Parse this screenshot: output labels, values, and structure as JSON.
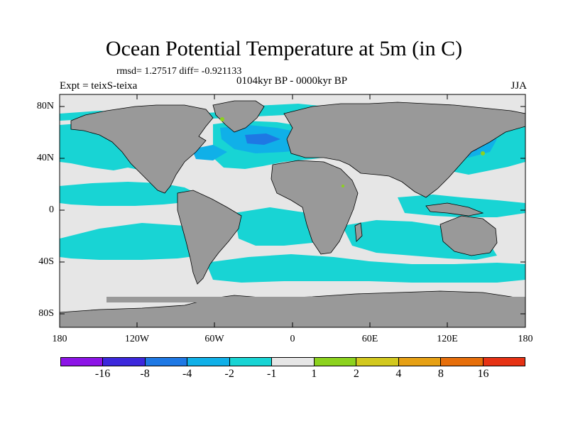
{
  "header": {
    "title": "Ocean Potential Temperature at 5m (in C)",
    "stats": "rmsd= 1.27517 diff= -0.921133",
    "period": "0104kyr BP - 0000kyr BP",
    "experiment": "Expt = teixS-teixa",
    "season": "JJA"
  },
  "map": {
    "projection": "cylindrical equidistant",
    "lon_range": [
      -180,
      180
    ],
    "lat_range": [
      -90,
      90
    ],
    "lat_ticks": [
      "80N",
      "40N",
      "0",
      "40S",
      "80S"
    ],
    "lon_ticks": [
      "180",
      "120W",
      "60W",
      "0",
      "60E",
      "120E",
      "180"
    ],
    "colors": {
      "land": "#999999",
      "background_ocean": "#e6e6e6",
      "cold_anomaly_light": "#18d4d4",
      "cold_anomaly_medium": "#10b0e8",
      "cold_anomaly_strong": "#1e78e4"
    }
  },
  "colorbar": {
    "labels": [
      "-16",
      "-8",
      "-4",
      "-2",
      "-1",
      "1",
      "2",
      "4",
      "8",
      "16"
    ],
    "colors": [
      "#8c14e6",
      "#3c28dc",
      "#1e78e4",
      "#10b0e8",
      "#18d4d4",
      "#e6e6e6",
      "#8cd21e",
      "#d2c81e",
      "#e6a014",
      "#e66e0a",
      "#e63214"
    ]
  }
}
